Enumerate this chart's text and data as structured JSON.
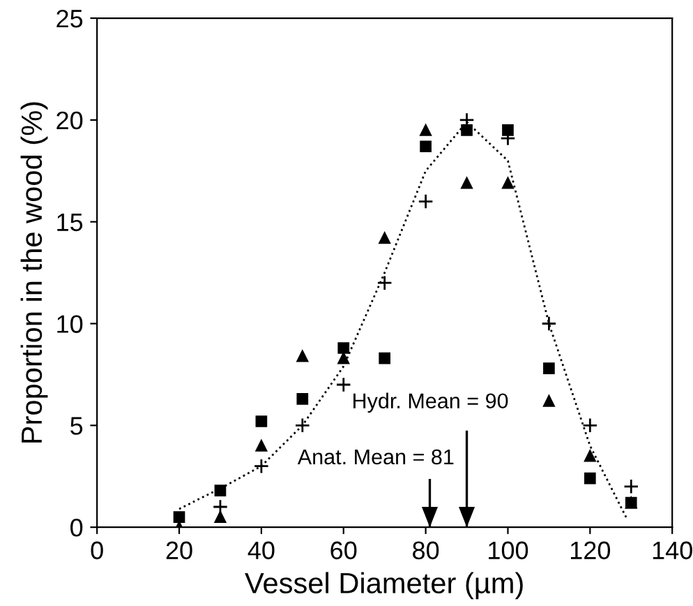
{
  "chart_data": {
    "type": "scatter",
    "xlabel": "Vessel Diameter (µm)",
    "ylabel": "Proportion in the wood (%)",
    "x": [
      20,
      30,
      40,
      50,
      60,
      70,
      80,
      90,
      100,
      110,
      120,
      130
    ],
    "xlim": [
      0,
      140
    ],
    "xticks": [
      0,
      20,
      40,
      60,
      80,
      100,
      120,
      140
    ],
    "ylim": [
      0,
      25
    ],
    "yticks": [
      0,
      5,
      10,
      15,
      20,
      25
    ],
    "grid": false,
    "legend": false,
    "series": [
      {
        "color": "#000000",
        "marker": "square",
        "values": [
          0.5,
          1.8,
          5.2,
          6.3,
          8.8,
          8.3,
          18.7,
          19.5,
          19.5,
          7.8,
          2.4,
          1.2
        ]
      },
      {
        "color": "#000000",
        "marker": "triangle",
        "values": [
          0,
          0.5,
          4.0,
          8.4,
          8.3,
          14.2,
          19.5,
          16.9,
          16.9,
          6.2,
          3.5,
          1.2
        ]
      },
      {
        "color": "#000000",
        "marker": "cross",
        "values": [
          null,
          1.0,
          3.0,
          5.0,
          7.0,
          12.0,
          16.0,
          20.0,
          19.1,
          10.0,
          5.0,
          2.0
        ]
      },
      {
        "type": "line",
        "color": "#000000",
        "marker": "none",
        "line_style": "dotted",
        "x": [
          20,
          30,
          40,
          50,
          60,
          70,
          80,
          90,
          100,
          110,
          120,
          129
        ],
        "values": [
          0.9,
          1.9,
          3.0,
          5.0,
          7.9,
          12.5,
          17.5,
          19.9,
          18.0,
          10.0,
          4.0,
          0.4
        ]
      }
    ],
    "ref_lines": [
      {
        "axis": "x",
        "value": 90,
        "label": "Hydr. Mean = 90"
      },
      {
        "axis": "x",
        "value": 81,
        "label": "Anat. Mean = 81"
      }
    ]
  }
}
